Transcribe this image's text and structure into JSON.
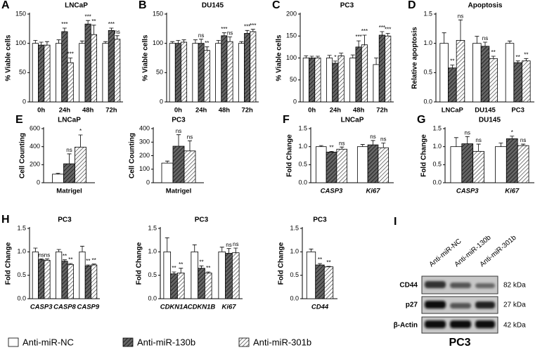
{
  "chart_data": [
    {
      "type": "bar",
      "panel": "A",
      "title": "LNCaP",
      "ylabel": "% Viable cells",
      "categories": [
        "0h",
        "24h",
        "48h",
        "72h"
      ],
      "ylim": [
        0,
        150
      ],
      "yticks": [
        0,
        50,
        100,
        150
      ],
      "series": [
        {
          "values": [
            100,
            100,
            100,
            100
          ],
          "errors": [
            5,
            6,
            4,
            3
          ],
          "labels": [
            null,
            null,
            null,
            null
          ]
        },
        {
          "values": [
            97,
            120,
            133,
            122
          ],
          "errors": [
            5,
            6,
            6,
            4
          ],
          "labels": [
            null,
            "***",
            "***",
            "***"
          ]
        },
        {
          "values": [
            97,
            67,
            115,
            107
          ],
          "errors": [
            6,
            8,
            16,
            6
          ],
          "labels": [
            null,
            "***",
            "**",
            "ns"
          ]
        }
      ]
    },
    {
      "type": "bar",
      "panel": "B",
      "title": "DU145",
      "ylabel": "% Viable cells",
      "categories": [
        "0h",
        "24h",
        "48h",
        "72h"
      ],
      "ylim": [
        0,
        150
      ],
      "yticks": [
        0,
        50,
        100,
        150
      ],
      "series": [
        {
          "values": [
            100,
            100,
            100,
            100
          ],
          "errors": [
            3,
            6,
            5,
            3
          ],
          "labels": [
            null,
            null,
            null,
            null
          ]
        },
        {
          "values": [
            100,
            100,
            113,
            117
          ],
          "errors": [
            5,
            7,
            5,
            5
          ],
          "labels": [
            null,
            "ns",
            "***",
            "***"
          ]
        },
        {
          "values": [
            102,
            88,
            103,
            120
          ],
          "errors": [
            4,
            6,
            8,
            4
          ],
          "labels": [
            null,
            "**",
            "ns",
            "***"
          ]
        }
      ]
    },
    {
      "type": "bar",
      "panel": "C",
      "title": "PC3",
      "ylabel": "% Viable cells",
      "categories": [
        "0h",
        "24h",
        "48h",
        "72h"
      ],
      "ylim": [
        0,
        200
      ],
      "yticks": [
        0,
        50,
        100,
        150,
        200
      ],
      "series": [
        {
          "values": [
            100,
            100,
            100,
            85
          ],
          "errors": [
            5,
            6,
            7,
            15
          ],
          "labels": [
            null,
            null,
            null,
            null
          ]
        },
        {
          "values": [
            100,
            88,
            125,
            152
          ],
          "errors": [
            4,
            5,
            14,
            8
          ],
          "labels": [
            null,
            "*",
            "***",
            "***"
          ]
        },
        {
          "values": [
            100,
            105,
            130,
            150
          ],
          "errors": [
            4,
            6,
            22,
            6
          ],
          "labels": [
            null,
            null,
            "***",
            "***"
          ]
        }
      ]
    },
    {
      "type": "bar",
      "panel": "D",
      "title": "Apoptosis",
      "ylabel": "Relative apoptosis",
      "categories": [
        "LNCaP",
        "DU145",
        "PC3"
      ],
      "ylim": [
        0,
        1.5
      ],
      "yticks": [
        {
          "value": 0,
          "label": "0.0"
        },
        {
          "value": 0.5,
          "label": "0.5"
        },
        {
          "value": 1,
          "label": "1.0"
        },
        {
          "value": 1.5,
          "label": "1.5"
        }
      ],
      "series": [
        {
          "values": [
            1,
            1,
            1
          ],
          "errors": [
            0.18,
            0.12,
            0.04
          ],
          "labels": [
            null,
            null,
            null
          ]
        },
        {
          "values": [
            0.58,
            0.95,
            0.67
          ],
          "errors": [
            0.05,
            0.07,
            0.03
          ],
          "labels": [
            "**",
            "ns",
            "**"
          ]
        },
        {
          "values": [
            1.05,
            0.74,
            0.7
          ],
          "errors": [
            0.35,
            0.04,
            0.04
          ],
          "labels": [
            "ns",
            "**",
            "**"
          ]
        }
      ]
    },
    {
      "type": "bar",
      "panel": "E",
      "title": "LNCaP",
      "ylabel": "Cell Counting",
      "categories": [
        "Matrigel"
      ],
      "ylim": [
        0,
        600
      ],
      "yticks": [
        0,
        200,
        400,
        600
      ],
      "series": [
        {
          "values": [
            95
          ],
          "errors": [
            10
          ],
          "labels": [
            null
          ]
        },
        {
          "values": [
            210
          ],
          "errors": [
            110
          ],
          "labels": [
            "ns"
          ]
        },
        {
          "values": [
            395
          ],
          "errors": [
            135
          ],
          "labels": [
            "*"
          ]
        }
      ]
    },
    {
      "type": "bar",
      "title": "PC3",
      "ylabel": "Cell Counting",
      "categories": [
        "Matrigel"
      ],
      "ylim": [
        0,
        400
      ],
      "yticks": [
        0,
        100,
        200,
        300,
        400
      ],
      "series": [
        {
          "values": [
            145
          ],
          "errors": [
            15
          ],
          "labels": [
            null
          ]
        },
        {
          "values": [
            270
          ],
          "errors": [
            85
          ],
          "labels": [
            "ns"
          ]
        },
        {
          "values": [
            235
          ],
          "errors": [
            75
          ],
          "labels": [
            "ns"
          ]
        }
      ]
    },
    {
      "type": "bar",
      "panel": "F",
      "title": "LNCaP",
      "ylabel": "Fold Change",
      "categories": [
        "CASP3",
        "Ki67"
      ],
      "italic_categories": true,
      "ylim": [
        0,
        1.5
      ],
      "yticks": [
        {
          "value": 0,
          "label": "0.0"
        },
        {
          "value": 0.5,
          "label": "0.5"
        },
        {
          "value": 1,
          "label": "1.0"
        },
        {
          "value": 1.5,
          "label": "1.5"
        }
      ],
      "series": [
        {
          "values": [
            1,
            1
          ],
          "errors": [
            0.03,
            0.06
          ],
          "labels": [
            null,
            null
          ]
        },
        {
          "values": [
            0.85,
            1.05
          ],
          "errors": [
            0.02,
            0.12
          ],
          "labels": [
            "**",
            "ns"
          ]
        },
        {
          "values": [
            0.93,
            0.97
          ],
          "errors": [
            0.06,
            0.13
          ],
          "labels": [
            "ns",
            "ns"
          ]
        }
      ]
    },
    {
      "type": "bar",
      "panel": "G",
      "title": "DU145",
      "ylabel": "Fold Change",
      "categories": [
        "CASP3",
        "Ki67"
      ],
      "italic_categories": true,
      "ylim": [
        0,
        1.5
      ],
      "yticks": [
        {
          "value": 0,
          "label": "0.0"
        },
        {
          "value": 0.5,
          "label": "0.5"
        },
        {
          "value": 1,
          "label": "1.0"
        },
        {
          "value": 1.5,
          "label": "1.5"
        }
      ],
      "series": [
        {
          "values": [
            1,
            1
          ],
          "errors": [
            0.25,
            0.1
          ],
          "labels": [
            null,
            null
          ]
        },
        {
          "values": [
            1.08,
            1.22
          ],
          "errors": [
            0.2,
            0.07
          ],
          "labels": [
            "ns",
            "*"
          ]
        },
        {
          "values": [
            0.87,
            1.03
          ],
          "errors": [
            0.2,
            0.04
          ],
          "labels": [
            "ns",
            "ns"
          ]
        }
      ]
    },
    {
      "type": "bar",
      "panel": "H",
      "title": "PC3",
      "ylabel": "Fold Change",
      "categories": [
        "CASP3",
        "CASP8",
        "CASP9"
      ],
      "italic_categories": true,
      "ylim": [
        0,
        1.5
      ],
      "yticks": [
        {
          "value": 0,
          "label": "0.0"
        },
        {
          "value": 0.5,
          "label": "0.5"
        },
        {
          "value": 1,
          "label": "1.0"
        },
        {
          "value": 1.5,
          "label": "1.5"
        }
      ],
      "series": [
        {
          "values": [
            1,
            1,
            1
          ],
          "errors": [
            0.08,
            0.05,
            0.12
          ],
          "labels": [
            null,
            null,
            null
          ]
        },
        {
          "values": [
            0.83,
            0.8,
            0.7
          ],
          "errors": [
            0.02,
            0.03,
            0.02
          ],
          "labels": [
            "ns",
            "**",
            "**"
          ]
        },
        {
          "values": [
            0.82,
            0.73,
            0.72
          ],
          "errors": [
            0.03,
            0.02,
            0.02
          ],
          "labels": [
            "ns",
            "**",
            "**"
          ]
        }
      ]
    },
    {
      "type": "bar",
      "title": "PC3",
      "ylabel": "Fold Change",
      "categories": [
        "CDKN1A",
        "CDKN1B",
        "Ki67"
      ],
      "italic_categories": true,
      "ylim": [
        0,
        1.5
      ],
      "yticks": [
        {
          "value": 0,
          "label": "0.0"
        },
        {
          "value": 0.5,
          "label": "0.5"
        },
        {
          "value": 1,
          "label": "1.0"
        },
        {
          "value": 1.5,
          "label": "1.5"
        }
      ],
      "series": [
        {
          "values": [
            1,
            1,
            1
          ],
          "errors": [
            0.3,
            0.15,
            0.1
          ],
          "labels": [
            null,
            null,
            null
          ]
        },
        {
          "values": [
            0.53,
            0.65,
            0.97
          ],
          "errors": [
            0.04,
            0.05,
            0.1
          ],
          "labels": [
            "**",
            "**",
            "ns"
          ]
        },
        {
          "values": [
            0.55,
            0.55,
            0.98
          ],
          "errors": [
            0.1,
            0.02,
            0.1
          ],
          "labels": [
            "**",
            "**",
            "ns"
          ]
        }
      ]
    },
    {
      "type": "bar",
      "title": "PC3",
      "ylabel": "Fold Change",
      "categories": [
        "CD44"
      ],
      "italic_categories": true,
      "ylim": [
        0,
        1.5
      ],
      "yticks": [
        {
          "value": 0,
          "label": "0.0"
        },
        {
          "value": 0.5,
          "label": "0.5"
        },
        {
          "value": 1,
          "label": "1.0"
        },
        {
          "value": 1.5,
          "label": "1.5"
        }
      ],
      "series": [
        {
          "values": [
            1
          ],
          "errors": [
            0.06
          ],
          "labels": [
            null
          ]
        },
        {
          "values": [
            0.72
          ],
          "errors": [
            0.03
          ],
          "labels": [
            "**"
          ]
        },
        {
          "values": [
            0.68
          ],
          "errors": [
            0.01
          ],
          "labels": [
            "**"
          ]
        }
      ]
    }
  ],
  "legend": [
    {
      "name": "Anti-miR-NC",
      "fill": "#ffffff"
    },
    {
      "name": "Anti-miR-130b",
      "fill": "url(#hatchDark)"
    },
    {
      "name": "Anti-miR-301b",
      "fill": "url(#hatchLight)"
    }
  ],
  "blot": {
    "panel": "I",
    "columns": [
      "Anti-miR-NC",
      "Anti-miR-130b",
      "Anti-miR-301b"
    ],
    "rows": [
      {
        "protein": "CD44",
        "size": "82 kDa"
      },
      {
        "protein": "p27",
        "size": "27 kDa"
      },
      {
        "protein": "β-Actin",
        "size": "42 kDa"
      }
    ],
    "caption": "PC3"
  }
}
